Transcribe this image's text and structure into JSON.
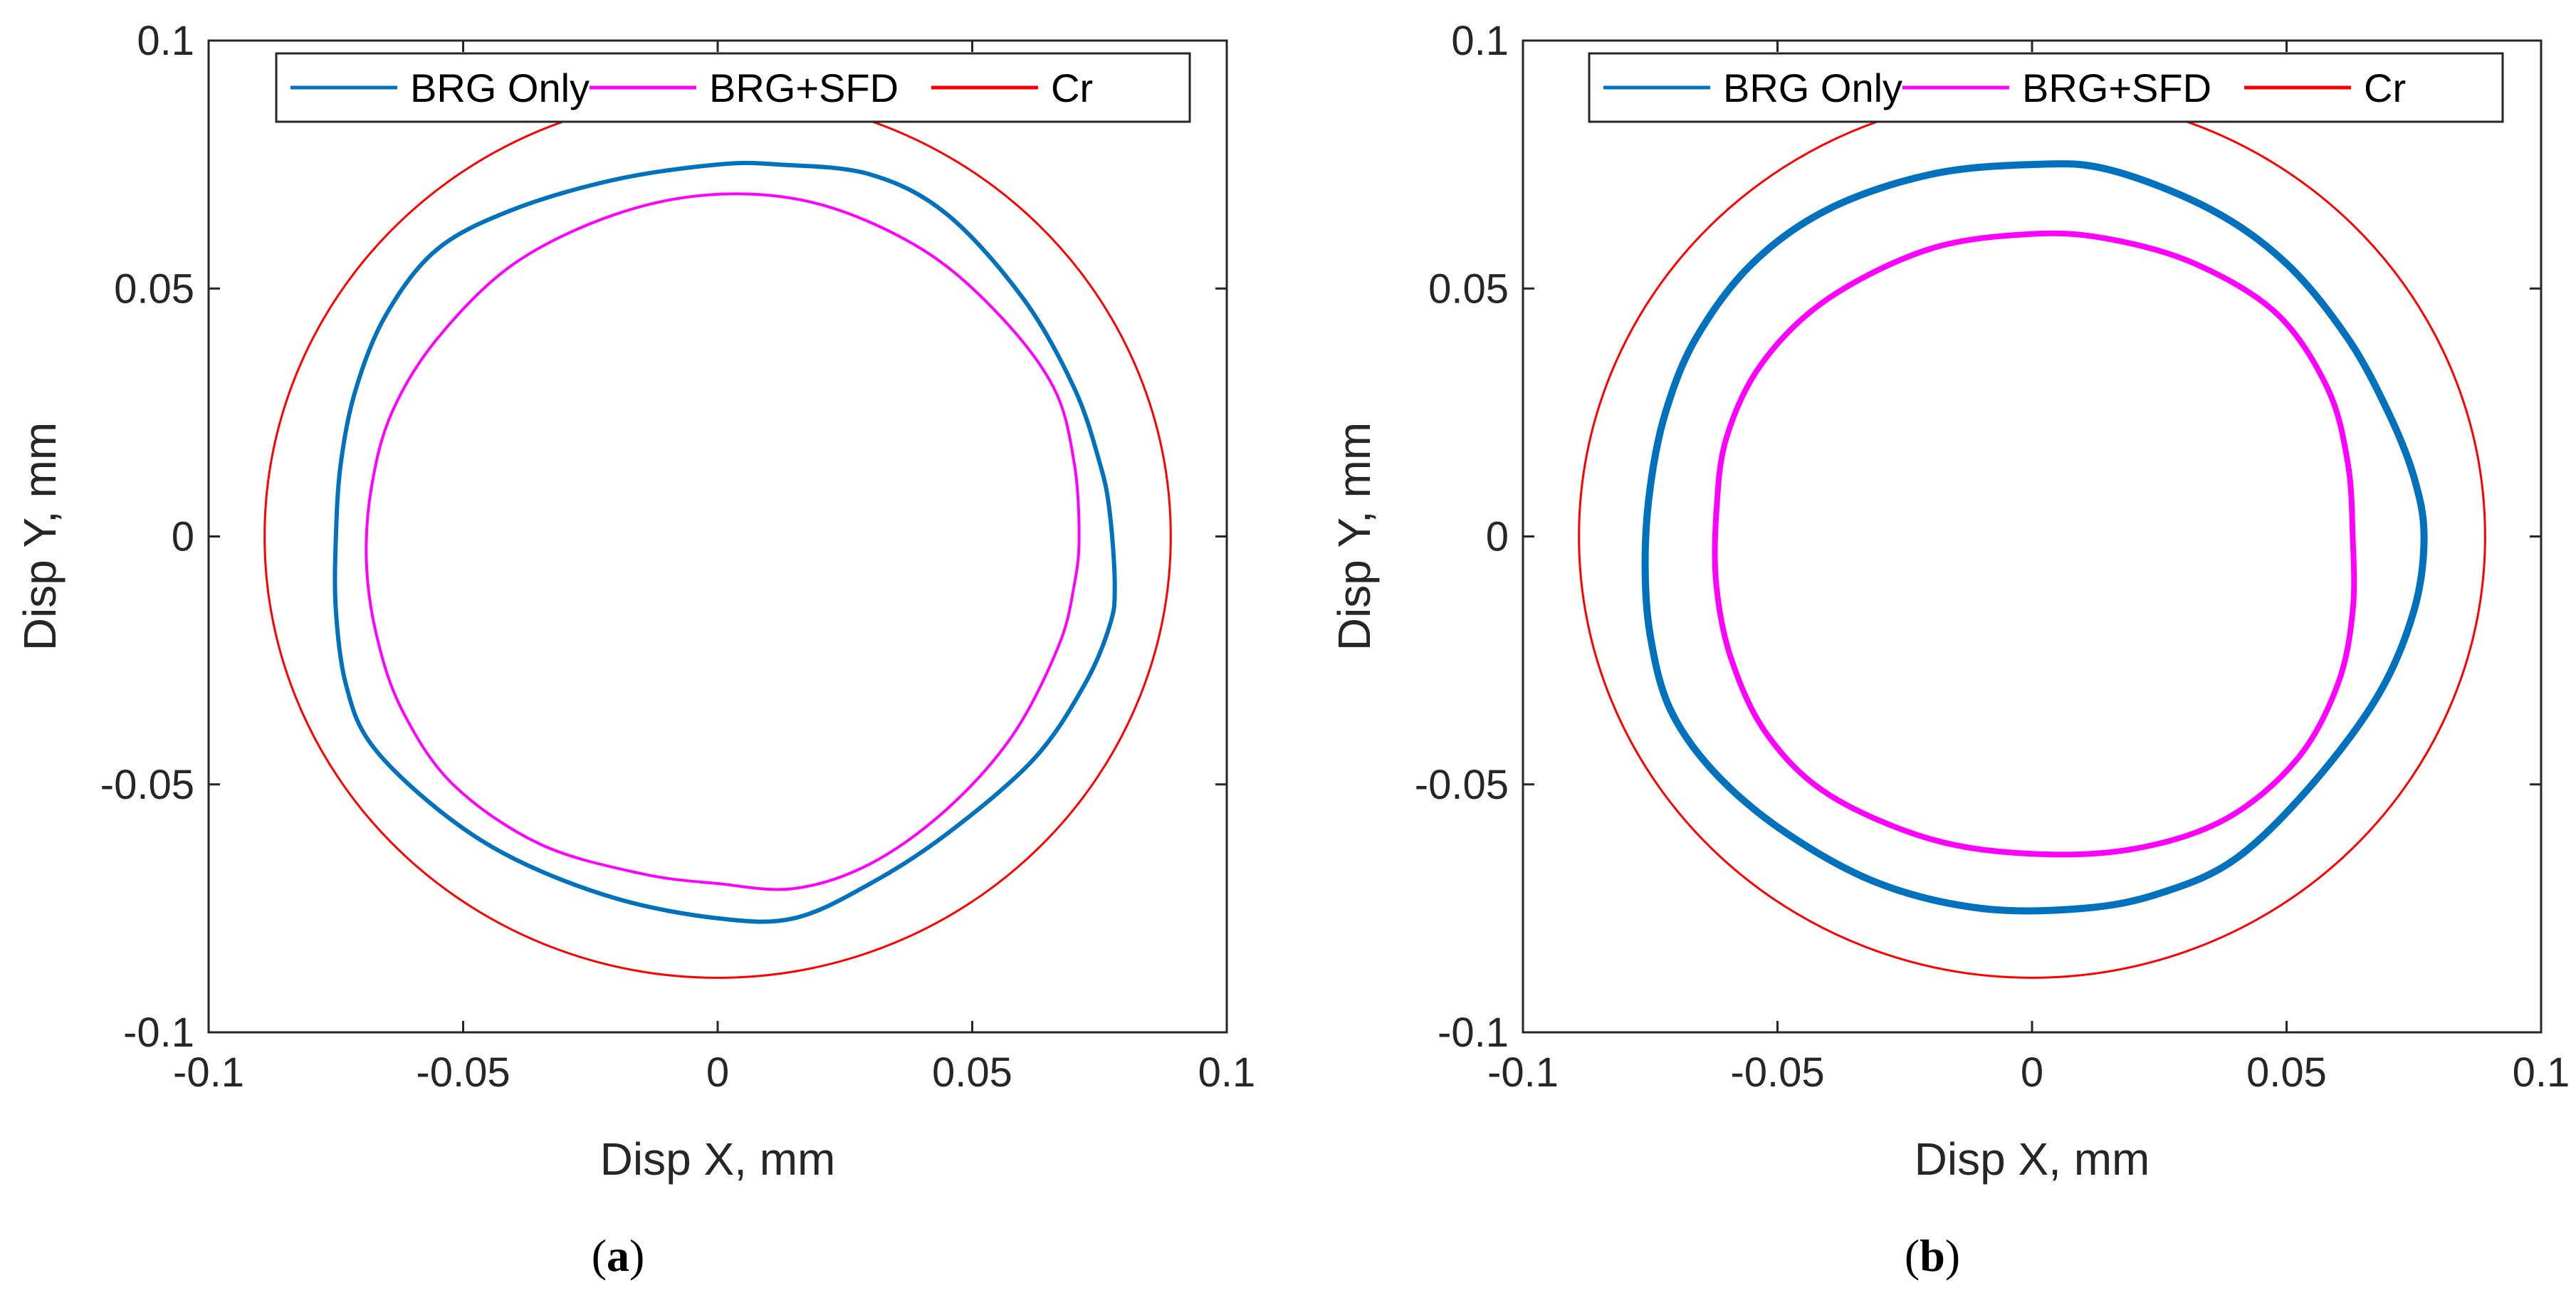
{
  "chart_data": [
    {
      "type": "line",
      "subplot_label": "a",
      "xlabel": "Disp X, mm",
      "ylabel": "Disp Y, mm",
      "xlim": [
        -0.1,
        0.1
      ],
      "ylim": [
        -0.1,
        0.1
      ],
      "xticks": [
        -0.1,
        -0.05,
        0,
        0.05,
        0.1
      ],
      "yticks": [
        -0.1,
        -0.05,
        0,
        0.05,
        0.1
      ],
      "xtick_labels": [
        "-0.1",
        "-0.05",
        "0",
        "0.05",
        "0.1"
      ],
      "ytick_labels": [
        "-0.1",
        "-0.05",
        "0",
        "0.05",
        "0.1"
      ],
      "grid": false,
      "legend_position": "top",
      "series": [
        {
          "name": "BRG Only",
          "color": "#0072BD",
          "closed": true,
          "points": [
            [
              0.078,
              -0.01
            ],
            [
              0.077,
              0.005
            ],
            [
              0.075,
              0.015
            ],
            [
              0.07,
              0.03
            ],
            [
              0.06,
              0.048
            ],
            [
              0.045,
              0.065
            ],
            [
              0.03,
              0.073
            ],
            [
              0.012,
              0.075
            ],
            [
              0.0,
              0.075
            ],
            [
              -0.02,
              0.072
            ],
            [
              -0.04,
              0.066
            ],
            [
              -0.055,
              0.058
            ],
            [
              -0.065,
              0.045
            ],
            [
              -0.071,
              0.03
            ],
            [
              -0.074,
              0.015
            ],
            [
              -0.075,
              0.0
            ],
            [
              -0.075,
              -0.015
            ],
            [
              -0.073,
              -0.03
            ],
            [
              -0.068,
              -0.042
            ],
            [
              -0.055,
              -0.055
            ],
            [
              -0.04,
              -0.065
            ],
            [
              -0.02,
              -0.073
            ],
            [
              0.0,
              -0.077
            ],
            [
              0.015,
              -0.077
            ],
            [
              0.03,
              -0.07
            ],
            [
              0.045,
              -0.06
            ],
            [
              0.062,
              -0.045
            ],
            [
              0.072,
              -0.03
            ],
            [
              0.077,
              -0.018
            ]
          ]
        },
        {
          "name": "BRG+SFD",
          "color": "#FF00FF",
          "closed": true,
          "points": [
            [
              0.071,
              0.0
            ],
            [
              0.07,
              0.015
            ],
            [
              0.066,
              0.03
            ],
            [
              0.055,
              0.045
            ],
            [
              0.04,
              0.058
            ],
            [
              0.02,
              0.067
            ],
            [
              0.0,
              0.069
            ],
            [
              -0.02,
              0.065
            ],
            [
              -0.04,
              0.055
            ],
            [
              -0.055,
              0.04
            ],
            [
              -0.064,
              0.025
            ],
            [
              -0.068,
              0.01
            ],
            [
              -0.069,
              -0.005
            ],
            [
              -0.067,
              -0.02
            ],
            [
              -0.062,
              -0.035
            ],
            [
              -0.052,
              -0.05
            ],
            [
              -0.035,
              -0.062
            ],
            [
              -0.015,
              -0.068
            ],
            [
              0.0,
              -0.07
            ],
            [
              0.015,
              -0.071
            ],
            [
              0.03,
              -0.066
            ],
            [
              0.045,
              -0.055
            ],
            [
              0.058,
              -0.04
            ],
            [
              0.067,
              -0.022
            ],
            [
              0.07,
              -0.01
            ]
          ]
        },
        {
          "name": "Cr",
          "color": "#FF0000",
          "shape": "circle",
          "center": [
            0,
            0
          ],
          "radius": 0.089
        }
      ]
    },
    {
      "type": "line",
      "subplot_label": "b",
      "xlabel": "Disp X, mm",
      "ylabel": "Disp Y, mm",
      "xlim": [
        -0.1,
        0.1
      ],
      "ylim": [
        -0.1,
        0.1
      ],
      "xticks": [
        -0.1,
        -0.05,
        0,
        0.05,
        0.1
      ],
      "yticks": [
        -0.1,
        -0.05,
        0,
        0.05,
        0.1
      ],
      "xtick_labels": [
        "-0.1",
        "-0.05",
        "0",
        "0.05",
        "0.1"
      ],
      "ytick_labels": [
        "-0.1",
        "-0.05",
        "0",
        "0.05",
        "0.1"
      ],
      "grid": false,
      "legend_position": "top",
      "series": [
        {
          "name": "BRG Only",
          "color": "#0072BD",
          "closed": true,
          "points": [
            [
              0.077,
              0.0
            ],
            [
              0.075,
              0.012
            ],
            [
              0.07,
              0.025
            ],
            [
              0.062,
              0.04
            ],
            [
              0.05,
              0.055
            ],
            [
              0.035,
              0.066
            ],
            [
              0.015,
              0.074
            ],
            [
              0.0,
              0.075
            ],
            [
              -0.02,
              0.073
            ],
            [
              -0.04,
              0.066
            ],
            [
              -0.055,
              0.055
            ],
            [
              -0.066,
              0.04
            ],
            [
              -0.072,
              0.025
            ],
            [
              -0.075,
              0.01
            ],
            [
              -0.076,
              -0.005
            ],
            [
              -0.075,
              -0.02
            ],
            [
              -0.071,
              -0.035
            ],
            [
              -0.062,
              -0.048
            ],
            [
              -0.048,
              -0.06
            ],
            [
              -0.03,
              -0.07
            ],
            [
              -0.01,
              -0.075
            ],
            [
              0.01,
              -0.075
            ],
            [
              0.025,
              -0.072
            ],
            [
              0.04,
              -0.065
            ],
            [
              0.055,
              -0.05
            ],
            [
              0.068,
              -0.032
            ],
            [
              0.075,
              -0.015
            ]
          ]
        },
        {
          "name": "BRG+SFD",
          "color": "#FF00FF",
          "closed": true,
          "points": [
            [
              0.063,
              0.0
            ],
            [
              0.062,
              0.015
            ],
            [
              0.058,
              0.03
            ],
            [
              0.048,
              0.045
            ],
            [
              0.032,
              0.055
            ],
            [
              0.015,
              0.06
            ],
            [
              0.0,
              0.061
            ],
            [
              -0.02,
              0.058
            ],
            [
              -0.04,
              0.048
            ],
            [
              -0.053,
              0.035
            ],
            [
              -0.06,
              0.02
            ],
            [
              -0.062,
              0.005
            ],
            [
              -0.062,
              -0.01
            ],
            [
              -0.059,
              -0.025
            ],
            [
              -0.052,
              -0.04
            ],
            [
              -0.04,
              -0.052
            ],
            [
              -0.02,
              -0.061
            ],
            [
              0.0,
              -0.064
            ],
            [
              0.02,
              -0.063
            ],
            [
              0.038,
              -0.057
            ],
            [
              0.052,
              -0.045
            ],
            [
              0.06,
              -0.03
            ],
            [
              0.063,
              -0.015
            ]
          ]
        },
        {
          "name": "Cr",
          "color": "#FF0000",
          "shape": "circle",
          "center": [
            0,
            0
          ],
          "radius": 0.089
        }
      ]
    }
  ]
}
